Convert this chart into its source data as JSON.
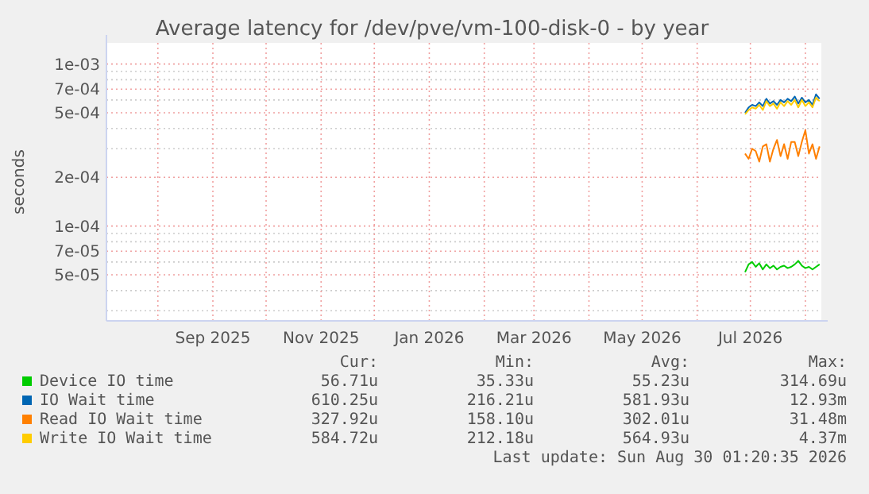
{
  "chart_data": {
    "type": "line",
    "title": "Average latency for /dev/pve/vm-100-disk-0 - by year",
    "ylabel": "seconds",
    "log": "y",
    "grid": true,
    "legend": "bottom",
    "marker": "none",
    "line_style": "solid",
    "xlim": [
      "2025-07-03",
      "2026-08-10"
    ],
    "xticks": [
      {
        "value": "2025-08-01",
        "label": null
      },
      {
        "value": "2025-09-01",
        "label": "Sep 2025"
      },
      {
        "value": "2025-10-01",
        "label": null
      },
      {
        "value": "2025-11-01",
        "label": "Nov 2025"
      },
      {
        "value": "2025-12-01",
        "label": null
      },
      {
        "value": "2026-01-01",
        "label": "Jan 2026"
      },
      {
        "value": "2026-02-01",
        "label": null
      },
      {
        "value": "2026-03-01",
        "label": "Mar 2026"
      },
      {
        "value": "2026-04-01",
        "label": null
      },
      {
        "value": "2026-05-01",
        "label": "May 2026"
      },
      {
        "value": "2026-06-01",
        "label": null
      },
      {
        "value": "2026-07-01",
        "label": "Jul 2026"
      },
      {
        "value": "2026-08-01",
        "label": null
      }
    ],
    "ylim": [
      2.6e-05,
      0.00135
    ],
    "yticks": [
      {
        "value": 3e-05,
        "label": null
      },
      {
        "value": 4e-05,
        "label": null
      },
      {
        "value": 5e-05,
        "label": "5e-05"
      },
      {
        "value": 6e-05,
        "label": null
      },
      {
        "value": 7e-05,
        "label": "7e-05"
      },
      {
        "value": 8e-05,
        "label": null
      },
      {
        "value": 9e-05,
        "label": null
      },
      {
        "value": 0.0001,
        "label": "1e-04"
      },
      {
        "value": 0.0002,
        "label": "2e-04"
      },
      {
        "value": 0.0003,
        "label": null
      },
      {
        "value": 0.0004,
        "label": null
      },
      {
        "value": 0.0005,
        "label": "5e-04"
      },
      {
        "value": 0.0006,
        "label": null
      },
      {
        "value": 0.0007,
        "label": "7e-04"
      },
      {
        "value": 0.0008,
        "label": null
      },
      {
        "value": 0.0009,
        "label": null
      },
      {
        "value": 0.001,
        "label": "1e-03"
      }
    ],
    "x": [
      "2026-06-28",
      "2026-06-30",
      "2026-07-02",
      "2026-07-04",
      "2026-07-06",
      "2026-07-08",
      "2026-07-10",
      "2026-07-12",
      "2026-07-14",
      "2026-07-16",
      "2026-07-18",
      "2026-07-20",
      "2026-07-22",
      "2026-07-24",
      "2026-07-26",
      "2026-07-28",
      "2026-07-30",
      "2026-08-01",
      "2026-08-03",
      "2026-08-05",
      "2026-08-07",
      "2026-08-09"
    ],
    "series": [
      {
        "name": "Device IO time",
        "color": "#00cc00",
        "values": [
          5.2e-05,
          5.8e-05,
          6e-05,
          5.6e-05,
          5.9e-05,
          5.4e-05,
          5.8e-05,
          5.5e-05,
          5.7e-05,
          5.4e-05,
          5.6e-05,
          5.7e-05,
          5.5e-05,
          5.6e-05,
          5.8e-05,
          6.1e-05,
          5.7e-05,
          5.5e-05,
          5.6e-05,
          5.4e-05,
          5.6e-05,
          5.8e-05
        ]
      },
      {
        "name": "IO Wait time",
        "color": "#0066b3",
        "values": [
          0.0005,
          0.00054,
          0.00056,
          0.00055,
          0.00058,
          0.00055,
          0.00061,
          0.00057,
          0.00059,
          0.00056,
          0.0006,
          0.00058,
          0.00061,
          0.00059,
          0.00063,
          0.00057,
          0.00062,
          0.00058,
          0.0006,
          0.00056,
          0.00065,
          0.00061
        ]
      },
      {
        "name": "Read IO Wait time",
        "color": "#ff8000",
        "values": [
          0.00028,
          0.00026,
          0.0003,
          0.00029,
          0.00025,
          0.00031,
          0.00032,
          0.00025,
          0.0003,
          0.00034,
          0.00027,
          0.00032,
          0.00026,
          0.00033,
          0.00033,
          0.00027,
          0.00033,
          0.00039,
          0.00028,
          0.00032,
          0.00026,
          0.00031
        ]
      },
      {
        "name": "Write IO Wait time",
        "color": "#ffcc00",
        "values": [
          0.00049,
          0.00052,
          0.00054,
          0.00053,
          0.00056,
          0.00052,
          0.00059,
          0.00055,
          0.00057,
          0.00053,
          0.00058,
          0.00055,
          0.00059,
          0.00056,
          0.0006,
          0.00054,
          0.0006,
          0.00055,
          0.00058,
          0.00054,
          0.00062,
          0.00059
        ]
      }
    ],
    "annotations": [
      "Cur:",
      "Min:",
      "Avg:",
      "Max:",
      "56.71u",
      "35.33u",
      "55.23u",
      "314.69u",
      "610.25u",
      "216.21u",
      "581.93u",
      "12.93m",
      "327.92u",
      "158.10u",
      "302.01u",
      "31.48m",
      "584.72u",
      "212.18u",
      "564.93u",
      "4.37m",
      "Last update: Sun Aug 30 01:20:35 2026"
    ]
  }
}
